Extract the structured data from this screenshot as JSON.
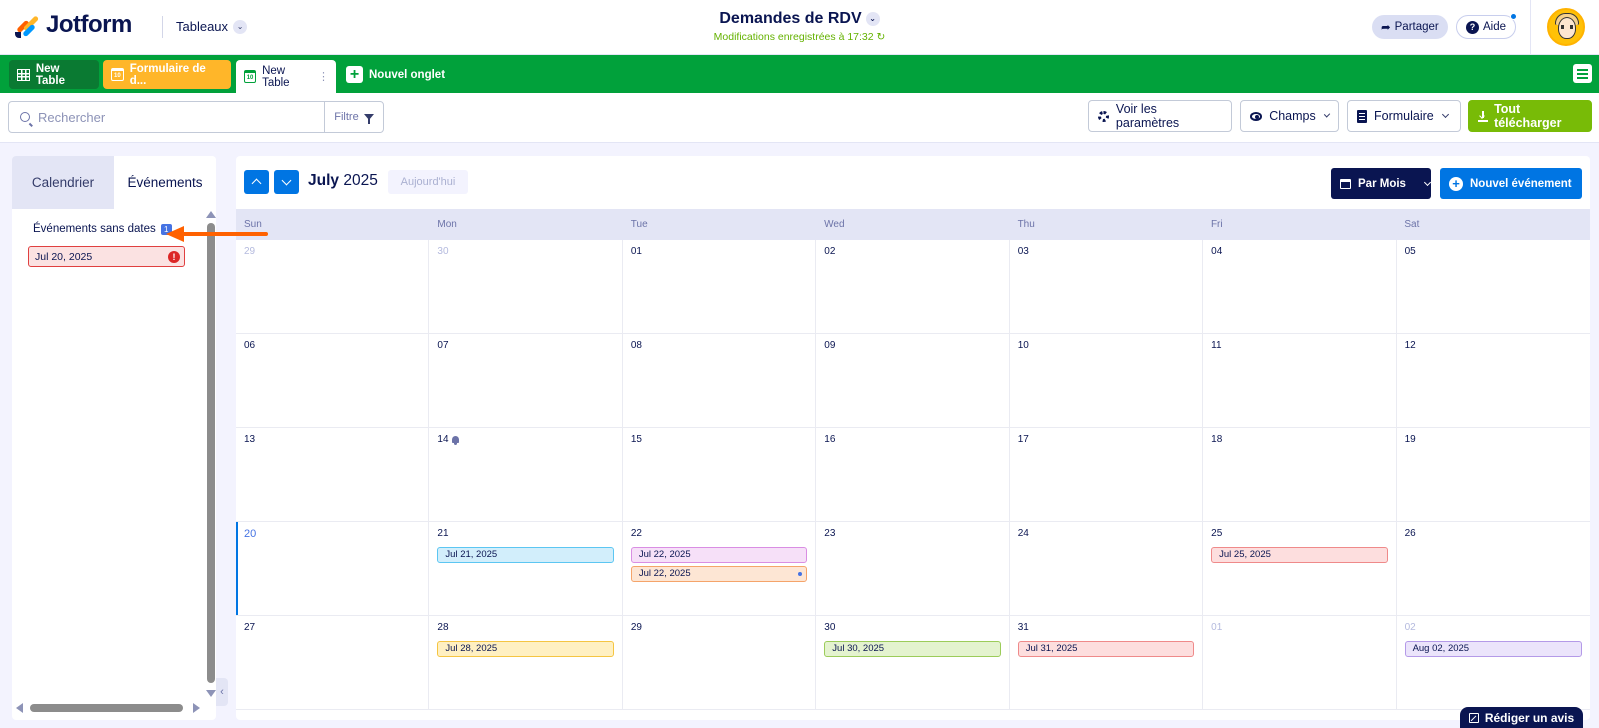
{
  "header": {
    "brand": "Jotform",
    "workspace": "Tableaux",
    "title": "Demandes de RDV",
    "saved_status": "Modifications enregistrées à 17:32 ↻",
    "share_label": "Partager",
    "help_label": "Aide"
  },
  "tabs": [
    {
      "label": "New Table",
      "icon": "grid-icon"
    },
    {
      "label": "Formulaire de d...",
      "icon": "calendar-icon",
      "cal_day": "10"
    },
    {
      "label": "New Table",
      "icon": "calendar-icon",
      "cal_day": "10",
      "menu": "⋮"
    },
    {
      "label": "Nouvel onglet",
      "icon": "plus-icon"
    }
  ],
  "toolbar": {
    "search_placeholder": "Rechercher",
    "filter_label": "Filtre",
    "settings_label": "Voir les paramètres",
    "fields_label": "Champs",
    "form_label": "Formulaire",
    "download_label": "Tout télécharger"
  },
  "left_panel": {
    "tab_calendar": "Calendrier",
    "tab_events": "Événements",
    "undated_title": "Événements sans dates",
    "undated_count": "1",
    "undated_items": [
      {
        "label": "Jul 20, 2025",
        "alert": "!"
      }
    ],
    "collapse_label": "‹"
  },
  "calendar": {
    "month": "July",
    "year": "2025",
    "today_label": "Aujourd'hui",
    "view_label": "Par Mois",
    "new_event_label": "Nouvel événement",
    "weekdays": [
      "Sun",
      "Mon",
      "Tue",
      "Wed",
      "Thu",
      "Fri",
      "Sat"
    ],
    "weeks": [
      [
        {
          "day": "29",
          "muted": true
        },
        {
          "day": "30",
          "muted": true
        },
        {
          "day": "01"
        },
        {
          "day": "02"
        },
        {
          "day": "03"
        },
        {
          "day": "04"
        },
        {
          "day": "05"
        }
      ],
      [
        {
          "day": "06"
        },
        {
          "day": "07"
        },
        {
          "day": "08"
        },
        {
          "day": "09"
        },
        {
          "day": "10"
        },
        {
          "day": "11"
        },
        {
          "day": "12"
        }
      ],
      [
        {
          "day": "13"
        },
        {
          "day": "14",
          "bell": true
        },
        {
          "day": "15"
        },
        {
          "day": "16"
        },
        {
          "day": "17"
        },
        {
          "day": "18"
        },
        {
          "day": "19"
        }
      ],
      [
        {
          "day": "20",
          "today": true
        },
        {
          "day": "21",
          "events": [
            {
              "label": "Jul 21, 2025",
              "bg": "#d2eefb",
              "border": "#5cc6f2"
            }
          ]
        },
        {
          "day": "22",
          "events": [
            {
              "label": "Jul 22, 2025",
              "bg": "#f6e0f8",
              "border": "#d98ee3"
            },
            {
              "label": "Jul 22, 2025",
              "bg": "#fde6d4",
              "border": "#f5a46a",
              "dot": true
            }
          ]
        },
        {
          "day": "23"
        },
        {
          "day": "24"
        },
        {
          "day": "25",
          "events": [
            {
              "label": "Jul 25, 2025",
              "bg": "#fddede",
              "border": "#ef8a8a"
            }
          ]
        },
        {
          "day": "26"
        }
      ],
      [
        {
          "day": "27"
        },
        {
          "day": "28",
          "events": [
            {
              "label": "Jul 28, 2025",
              "bg": "#fff0c2",
              "border": "#f5c542"
            }
          ]
        },
        {
          "day": "29"
        },
        {
          "day": "30",
          "events": [
            {
              "label": "Jul 30, 2025",
              "bg": "#e4f3cf",
              "border": "#9ccc5a"
            }
          ]
        },
        {
          "day": "31",
          "events": [
            {
              "label": "Jul 31, 2025",
              "bg": "#fddede",
              "border": "#ef8a8a"
            }
          ]
        },
        {
          "day": "01",
          "muted": true
        },
        {
          "day": "02",
          "muted": true,
          "events": [
            {
              "label": "Aug 02, 2025",
              "bg": "#ebe4fb",
              "border": "#b49ae8"
            }
          ]
        }
      ]
    ]
  },
  "review_label": "Rédiger un avis"
}
